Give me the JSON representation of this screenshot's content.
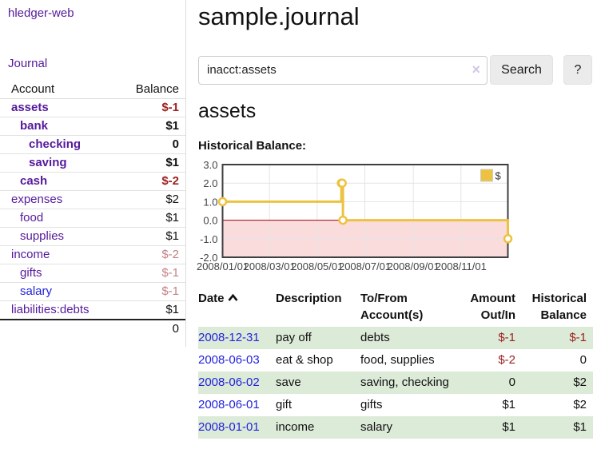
{
  "colors": {
    "link_purple": "#551a9b",
    "link_blue": "#2222dd",
    "negative": "#9d1f1f",
    "negative_light": "#c38282",
    "row_green": "#dcead8",
    "chart_yellow": "#edc240",
    "negative_region_pink": "#fbdcdc",
    "zero_line_red": "#a00000"
  },
  "app": {
    "title": "hledger-web",
    "journal_label": "Journal"
  },
  "sidebar": {
    "headers": {
      "account": "Account",
      "balance": "Balance"
    },
    "accounts": [
      {
        "name": "assets",
        "depth": 1,
        "bold": true,
        "name_color": "purple",
        "balance": "$-1",
        "balance_color": "neg"
      },
      {
        "name": "bank",
        "depth": 2,
        "bold": true,
        "name_color": "purple",
        "balance": "$1",
        "balance_color": "pos"
      },
      {
        "name": "checking",
        "depth": 3,
        "bold": true,
        "name_color": "purple",
        "balance": "0",
        "balance_color": "pos"
      },
      {
        "name": "saving",
        "depth": 3,
        "bold": true,
        "name_color": "purple",
        "balance": "$1",
        "balance_color": "pos"
      },
      {
        "name": "cash",
        "depth": 2,
        "bold": true,
        "name_color": "purple",
        "balance": "$-2",
        "balance_color": "neg"
      },
      {
        "name": "expenses",
        "depth": 1,
        "bold": false,
        "name_color": "purple",
        "balance": "$2",
        "balance_color": "pos"
      },
      {
        "name": "food",
        "depth": 2,
        "bold": false,
        "name_color": "purple",
        "balance": "$1",
        "balance_color": "pos"
      },
      {
        "name": "supplies",
        "depth": 2,
        "bold": false,
        "name_color": "purple",
        "balance": "$1",
        "balance_color": "pos"
      },
      {
        "name": "income",
        "depth": 1,
        "bold": false,
        "name_color": "purple",
        "balance": "$-2",
        "balance_color": "neg-light"
      },
      {
        "name": "gifts",
        "depth": 2,
        "bold": false,
        "name_color": "purple",
        "balance": "$-1",
        "balance_color": "neg-light"
      },
      {
        "name": "salary",
        "depth": 2,
        "bold": false,
        "name_color": "blue",
        "balance": "$-1",
        "balance_color": "neg-light"
      },
      {
        "name": "liabilities:debts",
        "depth": 1,
        "bold": false,
        "name_color": "purple",
        "balance": "$1",
        "balance_color": "pos"
      }
    ],
    "total": "0"
  },
  "main": {
    "title": "sample.journal",
    "search": {
      "value": "inacct:assets",
      "clear_icon": "×",
      "button_label": "Search",
      "help_label": "?"
    },
    "account_heading": "assets",
    "chart_heading": "Historical Balance:",
    "register": {
      "headers": [
        {
          "label": "Date",
          "sortable": true
        },
        {
          "label": "Description"
        },
        {
          "label": "To/From Account(s)"
        },
        {
          "label": "Amount Out/In"
        },
        {
          "label": "Historical Balance"
        }
      ],
      "rows": [
        {
          "date": "2008-12-31",
          "description": "pay off",
          "accounts": "debts",
          "amount": "$-1",
          "amount_color": "neg",
          "balance": "$-1",
          "balance_color": "neg",
          "shaded": true
        },
        {
          "date": "2008-06-03",
          "description": "eat & shop",
          "accounts": "food, supplies",
          "amount": "$-2",
          "amount_color": "neg",
          "balance": "0",
          "balance_color": "pos",
          "shaded": false
        },
        {
          "date": "2008-06-02",
          "description": "save",
          "accounts": "saving, checking",
          "amount": "0",
          "amount_color": "pos",
          "balance": "$2",
          "balance_color": "pos",
          "shaded": true
        },
        {
          "date": "2008-06-01",
          "description": "gift",
          "accounts": "gifts",
          "amount": "$1",
          "amount_color": "pos",
          "balance": "$2",
          "balance_color": "pos",
          "shaded": false
        },
        {
          "date": "2008-01-01",
          "description": "income",
          "accounts": "salary",
          "amount": "$1",
          "amount_color": "pos",
          "balance": "$1",
          "balance_color": "pos",
          "shaded": true
        }
      ]
    }
  },
  "chart_data": {
    "type": "line",
    "title": "Historical Balance",
    "step": true,
    "x_range": [
      "2008-01-01",
      "2008-12-31"
    ],
    "ylim": [
      -2,
      3
    ],
    "yticks": [
      "3.0",
      "2.0",
      "1.0",
      "0.0",
      "-1.0",
      "-2.0"
    ],
    "xticks": [
      {
        "date": "2008-01-01",
        "label": "2008/01/01"
      },
      {
        "date": "2008-03-01",
        "label": "2008/03/01"
      },
      {
        "date": "2008-05-01",
        "label": "2008/05/01"
      },
      {
        "date": "2008-07-01",
        "label": "2008/07/01"
      },
      {
        "date": "2008-09-01",
        "label": "2008/09/01"
      },
      {
        "date": "2008-11-01",
        "label": "2008/11/01"
      }
    ],
    "series": [
      {
        "name": "$",
        "color": "#edc240",
        "points": [
          [
            "2008-01-01",
            1
          ],
          [
            "2008-06-01",
            2
          ],
          [
            "2008-06-02",
            2
          ],
          [
            "2008-06-03",
            0
          ],
          [
            "2008-12-31",
            -1
          ]
        ]
      }
    ],
    "legend": [
      {
        "label": "$",
        "color": "#edc240"
      }
    ],
    "legend_position": "top-right",
    "grid": true,
    "negative_region_color": "#fbdcdc",
    "zero_line_color": "#a00000"
  }
}
